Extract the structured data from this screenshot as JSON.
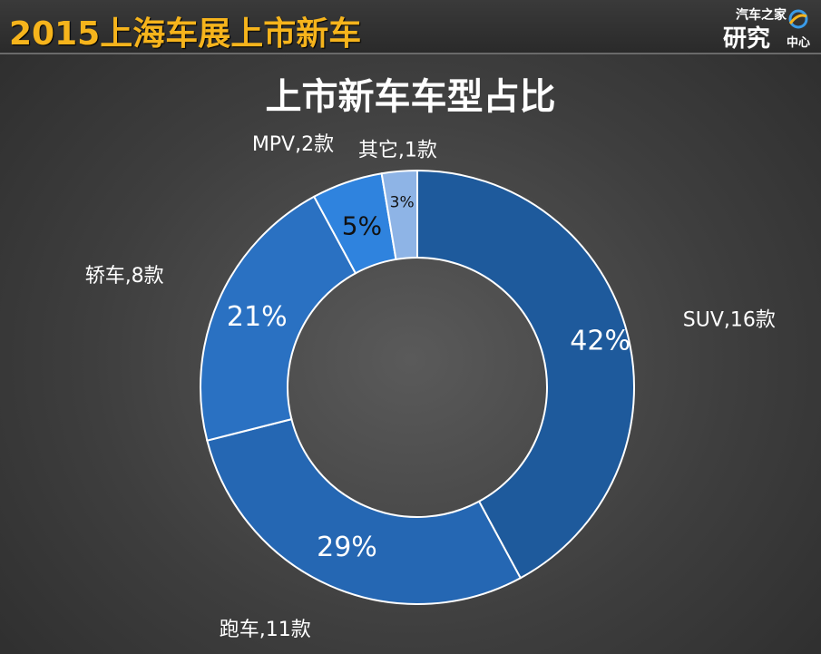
{
  "header": {
    "title": "2015上海车展上市新车",
    "logo_line1": "汽车之家",
    "logo_line2": "研究",
    "logo_line3": "中心"
  },
  "colors": {
    "title": "#f6b41c",
    "slice_stroke": "#ffffff"
  },
  "chart_data": {
    "type": "pie",
    "variant": "donut",
    "title": "上市新车车型占比",
    "series": [
      {
        "category": "SUV",
        "count": 16,
        "percent": 42,
        "label": "SUV,16款",
        "pct_label": "42%",
        "color": "#1e5a9c"
      },
      {
        "category": "跑车",
        "count": 11,
        "percent": 29,
        "label": "跑车,11款",
        "pct_label": "29%",
        "color": "#2567b3"
      },
      {
        "category": "轿车",
        "count": 8,
        "percent": 21,
        "label": "轿车,8款",
        "pct_label": "21%",
        "color": "#2a71c2"
      },
      {
        "category": "MPV",
        "count": 2,
        "percent": 5,
        "label": "MPV,2款",
        "pct_label": "5%",
        "color": "#2f83de"
      },
      {
        "category": "其它",
        "count": 1,
        "percent": 3,
        "label": "其它,1款",
        "pct_label": "3%",
        "color": "#8eb4e6"
      }
    ],
    "legend": "none"
  }
}
